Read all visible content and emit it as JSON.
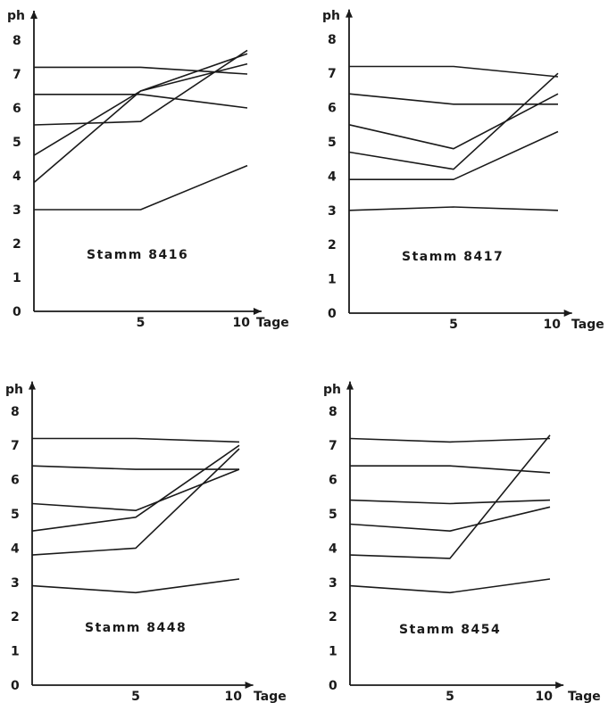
{
  "chart_data": [
    {
      "type": "line",
      "title": "Stamm 8416",
      "xlabel": "Tage",
      "ylabel": "ph",
      "x": [
        0,
        5,
        10
      ],
      "xlim": [
        0,
        10.5
      ],
      "ylim": [
        0,
        8.5
      ],
      "xticks": [
        "5",
        "10"
      ],
      "yticks": [
        "0",
        "1",
        "2",
        "3",
        "4",
        "5",
        "6",
        "7",
        "8"
      ],
      "series": [
        {
          "values": [
            7.2,
            7.2,
            7.0
          ]
        },
        {
          "values": [
            6.4,
            6.4,
            6.0
          ]
        },
        {
          "values": [
            5.5,
            5.6,
            7.7
          ]
        },
        {
          "values": [
            4.6,
            6.5,
            7.3
          ]
        },
        {
          "values": [
            3.8,
            6.5,
            7.6
          ]
        },
        {
          "values": [
            3.0,
            3.0,
            4.3
          ]
        }
      ]
    },
    {
      "type": "line",
      "title": "Stamm 8417",
      "xlabel": "Tage",
      "ylabel": "ph",
      "x": [
        0,
        5,
        10
      ],
      "xlim": [
        0,
        10.5
      ],
      "ylim": [
        0,
        8.5
      ],
      "xticks": [
        "5",
        "10"
      ],
      "yticks": [
        "0",
        "1",
        "2",
        "3",
        "4",
        "5",
        "6",
        "7",
        "8"
      ],
      "series": [
        {
          "values": [
            7.2,
            7.2,
            6.9
          ]
        },
        {
          "values": [
            6.4,
            6.1,
            6.1
          ]
        },
        {
          "values": [
            5.5,
            4.8,
            6.4
          ]
        },
        {
          "values": [
            4.7,
            4.2,
            7.0
          ]
        },
        {
          "values": [
            3.9,
            3.9,
            5.3
          ]
        },
        {
          "values": [
            3.0,
            3.1,
            3.0
          ]
        }
      ]
    },
    {
      "type": "line",
      "title": "Stamm 8448",
      "xlabel": "Tage",
      "ylabel": "ph",
      "x": [
        0,
        5,
        10
      ],
      "xlim": [
        0,
        10.5
      ],
      "ylim": [
        0,
        8.5
      ],
      "xticks": [
        "5",
        "10"
      ],
      "yticks": [
        "0",
        "1",
        "2",
        "3",
        "4",
        "5",
        "6",
        "7",
        "8"
      ],
      "series": [
        {
          "values": [
            7.2,
            7.2,
            7.1
          ]
        },
        {
          "values": [
            6.4,
            6.3,
            6.3
          ]
        },
        {
          "values": [
            5.3,
            5.1,
            6.3
          ]
        },
        {
          "values": [
            4.5,
            4.9,
            7.0
          ]
        },
        {
          "values": [
            3.8,
            4.0,
            6.9
          ]
        },
        {
          "values": [
            2.9,
            2.7,
            3.1
          ]
        }
      ]
    },
    {
      "type": "line",
      "title": "Stamm 8454",
      "xlabel": "Tage",
      "ylabel": "ph",
      "x": [
        0,
        5,
        10
      ],
      "xlim": [
        0,
        10.5
      ],
      "ylim": [
        0,
        8.5
      ],
      "xticks": [
        "5",
        "10"
      ],
      "yticks": [
        "0",
        "1",
        "2",
        "3",
        "4",
        "5",
        "6",
        "7",
        "8"
      ],
      "series": [
        {
          "values": [
            7.2,
            7.1,
            7.2
          ]
        },
        {
          "values": [
            6.4,
            6.4,
            6.2
          ]
        },
        {
          "values": [
            5.4,
            5.3,
            5.4
          ]
        },
        {
          "values": [
            4.7,
            4.5,
            5.2
          ]
        },
        {
          "values": [
            3.8,
            3.7,
            7.3
          ]
        },
        {
          "values": [
            2.9,
            2.7,
            3.1
          ]
        }
      ]
    }
  ]
}
